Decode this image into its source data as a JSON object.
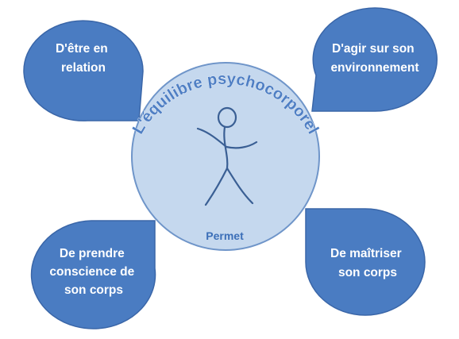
{
  "diagram": {
    "center": {
      "title": "L'équilibre psychocorporel",
      "label": "Permet",
      "figure_icon": "stick-figure-icon"
    },
    "bubbles": [
      {
        "id": "top-left",
        "lines": [
          "D'être en",
          "relation"
        ]
      },
      {
        "id": "top-right",
        "lines": [
          "D'agir sur son",
          "environnement"
        ]
      },
      {
        "id": "bottom-left",
        "lines": [
          "De prendre",
          "conscience de",
          "son corps"
        ]
      },
      {
        "id": "bottom-right",
        "lines": [
          "De maîtriser",
          "son corps"
        ]
      }
    ],
    "colors": {
      "bubble_fill": "#4a7cc2",
      "bubble_stroke": "#3a66a8",
      "center_fill": "#c5d8ee",
      "center_stroke": "#6f95c9",
      "figure_stroke": "#3a5f94",
      "title_color": "#4f7fc4"
    }
  }
}
